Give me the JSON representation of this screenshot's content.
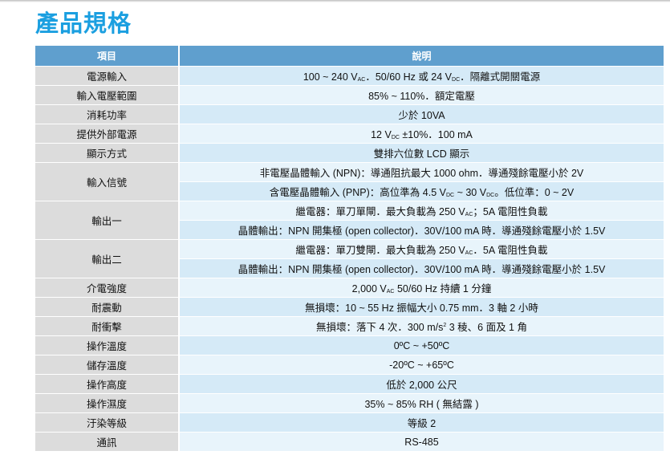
{
  "title": "產品規格",
  "header": {
    "item": "項目",
    "description": "說明"
  },
  "colors": {
    "title": "#1b9fe0",
    "header_bg": "#5f9fce",
    "row_dark": "#d5eaf7",
    "row_light": "#e8f4fb",
    "label_bg": "#dcdcdc"
  },
  "rows": [
    {
      "label": "電源輸入",
      "lines": [
        {
          "shade": "dk",
          "segs": [
            {
              "t": "100 ~ 240 V"
            },
            {
              "sub": "AC"
            },
            {
              "t": "．50/60 Hz 或 24 V"
            },
            {
              "sub": "DC"
            },
            {
              "t": "．隔離式開關電源"
            }
          ]
        }
      ]
    },
    {
      "label": "輸入電壓範圍",
      "lines": [
        {
          "shade": "lt",
          "segs": [
            {
              "t": "85% ~ 110%．額定電壓"
            }
          ]
        }
      ]
    },
    {
      "label": "消耗功率",
      "lines": [
        {
          "shade": "dk",
          "segs": [
            {
              "t": "少於 10VA"
            }
          ]
        }
      ]
    },
    {
      "label": "提供外部電源",
      "lines": [
        {
          "shade": "lt",
          "segs": [
            {
              "t": "12 V"
            },
            {
              "sub": "DC"
            },
            {
              "t": " ±10%．100 mA"
            }
          ]
        }
      ]
    },
    {
      "label": "顯示方式",
      "lines": [
        {
          "shade": "dk",
          "segs": [
            {
              "t": "雙排六位數 LCD 顯示"
            }
          ]
        }
      ]
    },
    {
      "label": "輸入信號",
      "lines": [
        {
          "shade": "lt",
          "segs": [
            {
              "t": "非電壓晶體輸入 (NPN)：導通阻抗最大 1000 ohm．導通殘餘電壓小於 2V"
            }
          ]
        },
        {
          "shade": "dk",
          "segs": [
            {
              "t": "含電壓晶體輸入 (PNP)：高位準為 4.5 V"
            },
            {
              "sub": "DC"
            },
            {
              "t": " ~ 30 V"
            },
            {
              "sub": "DC"
            },
            {
              "t": "。低位準：0 ~ 2V"
            }
          ]
        }
      ]
    },
    {
      "label": "輸出一",
      "lines": [
        {
          "shade": "lt",
          "segs": [
            {
              "t": "繼電器：單刀單閘．最大負載為 250 V"
            },
            {
              "sub": "AC"
            },
            {
              "t": "；5A 電阻性負載"
            }
          ]
        },
        {
          "shade": "dk",
          "segs": [
            {
              "t": "晶體輸出：NPN 開集極 (open collector)．30V/100 mA 時．導通殘餘電壓小於 1.5V"
            }
          ]
        }
      ]
    },
    {
      "label": "輸出二",
      "lines": [
        {
          "shade": "lt",
          "segs": [
            {
              "t": "繼電器：單刀雙閘．最大負載為 250 V"
            },
            {
              "sub": "AC"
            },
            {
              "t": "．5A 電阻性負載"
            }
          ]
        },
        {
          "shade": "dk",
          "segs": [
            {
              "t": "晶體輸出：NPN 開集極 (open collector)．30V/100 mA 時．導通殘餘電壓小於 1.5V"
            }
          ]
        }
      ]
    },
    {
      "label": "介電強度",
      "lines": [
        {
          "shade": "lt",
          "segs": [
            {
              "t": "2,000 V"
            },
            {
              "sub": "AC"
            },
            {
              "t": "  50/60 Hz  持續 1 分鐘"
            }
          ]
        }
      ]
    },
    {
      "label": "耐震動",
      "lines": [
        {
          "shade": "dk",
          "segs": [
            {
              "t": "無損壞：10 ~ 55 Hz 振幅大小 0.75 mm．3 軸 2 小時"
            }
          ]
        }
      ]
    },
    {
      "label": "耐衝擊",
      "lines": [
        {
          "shade": "lt",
          "segs": [
            {
              "t": "無損壞：落下 4 次．300 m/s"
            },
            {
              "sup": "2"
            },
            {
              "t": "  3 稜、6 面及 1 角"
            }
          ]
        }
      ]
    },
    {
      "label": "操作溫度",
      "lines": [
        {
          "shade": "dk",
          "segs": [
            {
              "t": "0ºC ~ +50ºC"
            }
          ]
        }
      ]
    },
    {
      "label": "儲存溫度",
      "lines": [
        {
          "shade": "lt",
          "segs": [
            {
              "t": "-20ºC ~ +65ºC"
            }
          ]
        }
      ]
    },
    {
      "label": "操作高度",
      "lines": [
        {
          "shade": "dk",
          "segs": [
            {
              "t": "低於 2,000 公尺"
            }
          ]
        }
      ]
    },
    {
      "label": "操作濕度",
      "lines": [
        {
          "shade": "lt",
          "segs": [
            {
              "t": "35% ~ 85% RH ( 無結露 )"
            }
          ]
        }
      ]
    },
    {
      "label": "汙染等級",
      "lines": [
        {
          "shade": "dk",
          "segs": [
            {
              "t": "等級 2"
            }
          ]
        }
      ]
    },
    {
      "label": "通訊",
      "lines": [
        {
          "shade": "lt",
          "segs": [
            {
              "t": "RS-485"
            }
          ]
        }
      ]
    }
  ]
}
